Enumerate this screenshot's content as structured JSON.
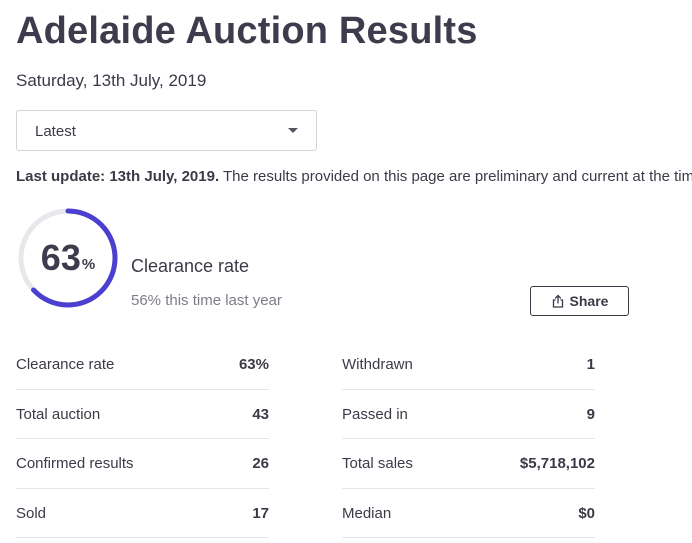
{
  "header": {
    "title": "Adelaide Auction Results",
    "date": "Saturday, 13th July, 2019"
  },
  "filter": {
    "selected": "Latest",
    "caret_icon": "chevron-down-icon"
  },
  "update_notice": {
    "bold": "Last update: 13th July, 2019.",
    "text": " The results provided on this page are preliminary and current at the time of publishing."
  },
  "clearance": {
    "value": "63",
    "percent_sign": "%",
    "rate": 0.63,
    "label": "Clearance rate",
    "comparison": "56% this time last year",
    "ring_color": "#4b3fcf",
    "track_color": "#e8e8ec"
  },
  "share": {
    "label": "Share",
    "icon": "share-icon"
  },
  "stats_left": [
    {
      "label": "Clearance rate",
      "value": "63%"
    },
    {
      "label": "Total auction",
      "value": "43"
    },
    {
      "label": "Confirmed results",
      "value": "26"
    },
    {
      "label": "Sold",
      "value": "17"
    }
  ],
  "stats_right": [
    {
      "label": "Withdrawn",
      "value": "1"
    },
    {
      "label": "Passed in",
      "value": "9"
    },
    {
      "label": "Total sales",
      "value": "$5,718,102"
    },
    {
      "label": "Median",
      "value": "$0"
    }
  ]
}
